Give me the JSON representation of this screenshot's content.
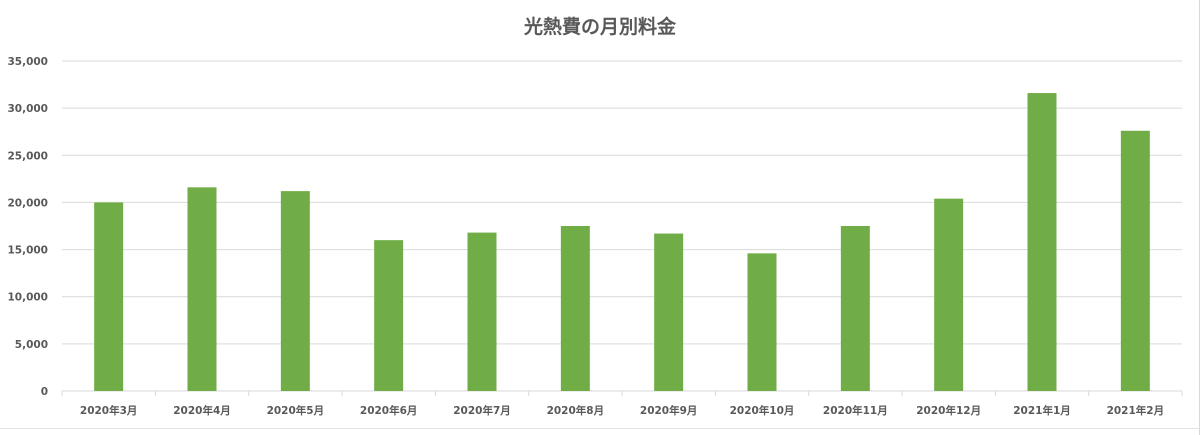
{
  "chart_data": {
    "type": "bar",
    "title": "光熱費の月別料金",
    "xlabel": "",
    "ylabel": "",
    "categories": [
      "2020年3月",
      "2020年4月",
      "2020年5月",
      "2020年6月",
      "2020年7月",
      "2020年8月",
      "2020年9月",
      "2020年10月",
      "2020年11月",
      "2020年12月",
      "2021年1月",
      "2021年2月"
    ],
    "values": [
      20000,
      21600,
      21200,
      16000,
      16800,
      17500,
      16700,
      14600,
      17500,
      20400,
      31600,
      27600
    ],
    "ylim": [
      0,
      35000
    ],
    "yticks": [
      "0",
      "5,000",
      "10,000",
      "15,000",
      "20,000",
      "25,000",
      "30,000",
      "35,000"
    ],
    "ytick_values": [
      0,
      5000,
      10000,
      15000,
      20000,
      25000,
      30000,
      35000
    ],
    "grid": true,
    "legend": "none",
    "colors": {
      "bar": "#70ad47",
      "grid": "#d9d9d9",
      "text": "#595959"
    }
  }
}
